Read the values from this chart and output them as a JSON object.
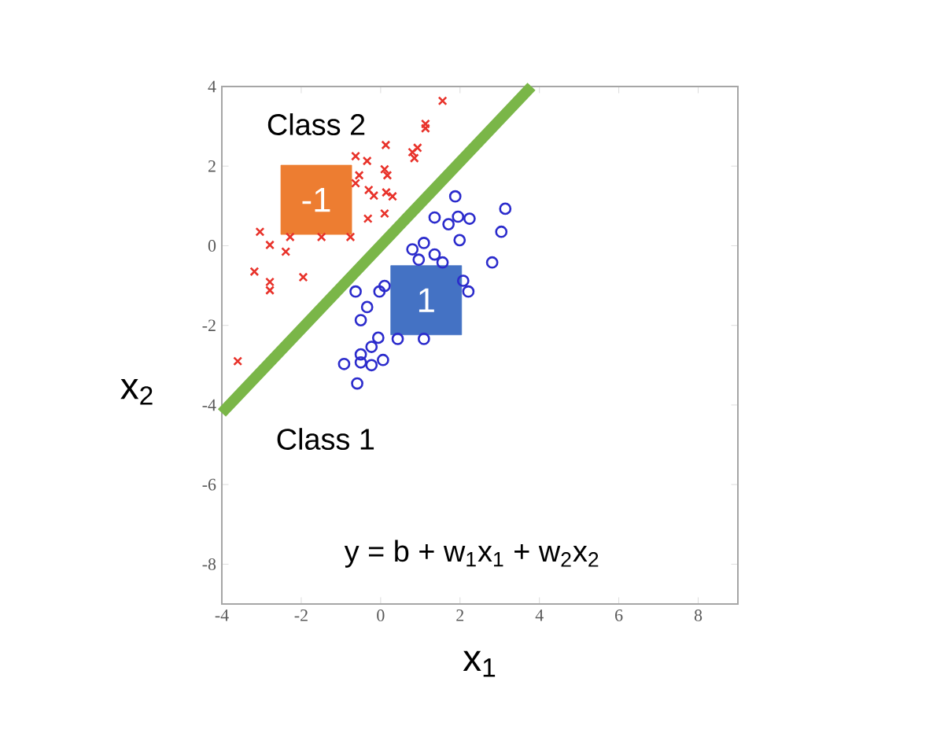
{
  "chart_data": {
    "type": "scatter",
    "xlabel": "x$_{1}$",
    "ylabel": "x$_{2}$",
    "xlim": [
      -4,
      9
    ],
    "ylim": [
      -9,
      4
    ],
    "xticks": [
      -4,
      -2,
      0,
      2,
      4,
      6,
      8
    ],
    "yticks": [
      -8,
      -6,
      -4,
      -2,
      0,
      2,
      4
    ],
    "grid": false,
    "annotations": [
      "Class 2",
      "Class 1",
      "y = b + w$_{1}$x$_{1}$ + w$_{2}$x$_{2}$",
      "-1",
      "1"
    ],
    "series": [
      {
        "color": "#e8322a",
        "marker": "cross",
        "x": [
          1.56,
          1.13,
          1.13,
          0.93,
          0.8,
          0.85,
          0.13,
          0.1,
          0.17,
          -0.63,
          -0.34,
          -0.54,
          -0.63,
          -0.3,
          -0.17,
          0.14,
          0.3,
          0.1,
          -0.32,
          -0.76,
          -1.49,
          -2.28,
          -3.04,
          -2.79,
          -2.39,
          -3.18,
          -2.79,
          -2.79,
          -1.95,
          -3.6
        ],
        "values": [
          3.64,
          3.06,
          2.95,
          2.46,
          2.35,
          2.2,
          2.53,
          1.92,
          1.77,
          2.25,
          2.13,
          1.77,
          1.57,
          1.4,
          1.26,
          1.34,
          1.24,
          0.81,
          0.68,
          0.22,
          0.22,
          0.22,
          0.35,
          0.02,
          -0.15,
          -0.65,
          -0.91,
          -1.12,
          -0.79,
          -2.9
        ]
      },
      {
        "color": "#2b2bcc",
        "marker": "circle",
        "x": [
          1.88,
          1.36,
          1.71,
          1.95,
          2.24,
          1.99,
          3.14,
          3.04,
          2.81,
          1.09,
          0.8,
          0.96,
          1.36,
          1.56,
          0.1,
          -0.03,
          -0.63,
          2.21,
          2.08,
          -0.34,
          -0.5,
          1.09,
          0.43,
          -0.06,
          -0.23,
          -0.5,
          0.06,
          -0.92,
          -0.5,
          -0.23,
          -0.59
        ],
        "values": [
          1.24,
          0.71,
          0.54,
          0.73,
          0.68,
          0.14,
          0.93,
          0.35,
          -0.42,
          0.07,
          -0.09,
          -0.35,
          -0.22,
          -0.42,
          -1.01,
          -1.15,
          -1.15,
          -1.15,
          -0.88,
          -1.54,
          -1.87,
          -2.34,
          -2.34,
          -2.31,
          -2.54,
          -2.73,
          -2.87,
          -2.97,
          -2.93,
          -3.0,
          -3.46
        ]
      },
      {
        "type": "line",
        "color": "#7ab648",
        "marker": "none",
        "x": [
          -4,
          3.8
        ],
        "values": [
          -4.2,
          4
        ]
      }
    ]
  }
}
